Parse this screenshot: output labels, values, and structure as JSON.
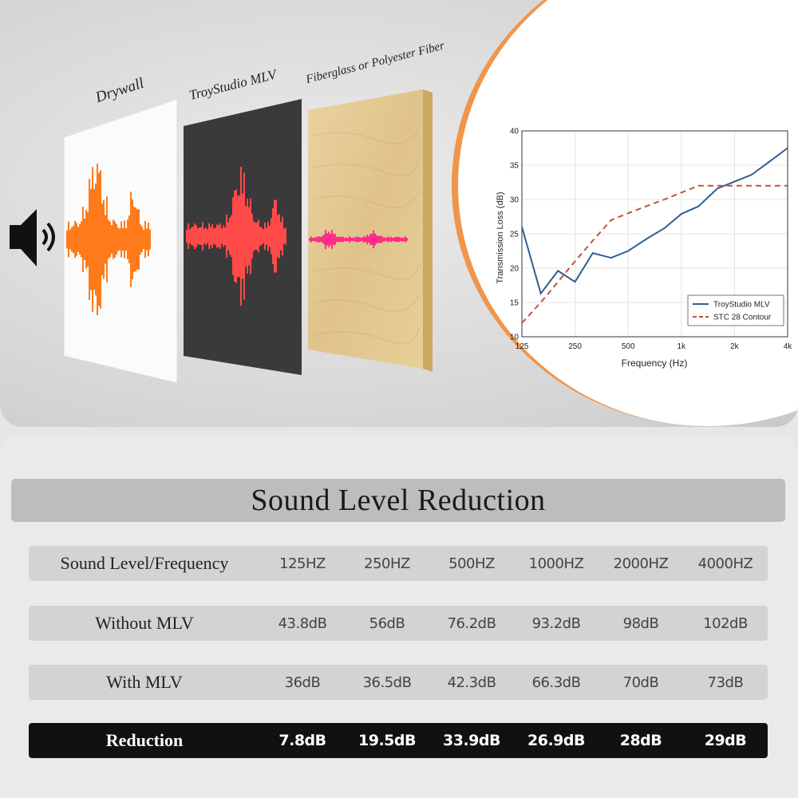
{
  "layers": [
    {
      "name": "Drywall"
    },
    {
      "name": "TroyStudio MLV"
    },
    {
      "name": "Fiberglass or Polyester Fiber"
    }
  ],
  "icons": {
    "speaker": "speaker-icon"
  },
  "colors": {
    "accent": "#f0954a",
    "mlv_line": "#2f5f8f",
    "stc_line": "#c0533a",
    "wave_drywall": "#ff7a1a",
    "wave_mlv": "#ff4a4a",
    "wave_fiber": "#ff2d8a"
  },
  "chart_data": {
    "type": "line",
    "xlabel": "Frequency (Hz)",
    "ylabel": "Transmission Loss (dB)",
    "xscale": "log",
    "xlim": [
      125,
      4000
    ],
    "ylim": [
      10,
      40
    ],
    "xticks": [
      125,
      250,
      500,
      1000,
      2000,
      4000
    ],
    "xticklabels": [
      "125",
      "250",
      "500",
      "1k",
      "2k",
      "4k"
    ],
    "yticks": [
      10,
      15,
      20,
      25,
      30,
      35,
      40
    ],
    "grid": true,
    "legend": "bottom-right",
    "series": [
      {
        "name": "TroyStudio MLV",
        "style": "solid",
        "x": [
          125,
          160,
          200,
          250,
          315,
          400,
          500,
          630,
          800,
          1000,
          1250,
          1600,
          2000,
          2500,
          3150,
          4000
        ],
        "y": [
          26,
          16.3,
          19.6,
          18,
          22.2,
          21.5,
          22.5,
          24.2,
          25.8,
          27.9,
          29,
          31.6,
          32.6,
          33.6,
          35.5,
          37.5
        ]
      },
      {
        "name": "STC 28 Contour",
        "style": "dashed",
        "x": [
          125,
          160,
          200,
          250,
          315,
          400,
          500,
          630,
          800,
          1000,
          1250,
          1600,
          2000,
          2500,
          3150,
          4000
        ],
        "y": [
          12,
          15,
          18,
          21,
          24,
          27,
          28,
          29,
          30,
          31,
          32,
          32,
          32,
          32,
          32,
          32
        ]
      }
    ]
  },
  "table": {
    "title": "Sound Level Reduction",
    "rows": [
      {
        "label": "Sound Level/Frequency",
        "cells": [
          "125HZ",
          "250HZ",
          "500HZ",
          "1000HZ",
          "2000HZ",
          "4000HZ"
        ]
      },
      {
        "label": "Without MLV",
        "cells": [
          "43.8dB",
          "56dB",
          "76.2dB",
          "93.2dB",
          "98dB",
          "102dB"
        ]
      },
      {
        "label": "With MLV",
        "cells": [
          "36dB",
          "36.5dB",
          "42.3dB",
          "66.3dB",
          "70dB",
          "73dB"
        ]
      },
      {
        "label": "Reduction",
        "cells": [
          "7.8dB",
          "19.5dB",
          "33.9dB",
          "26.9dB",
          "28dB",
          "29dB"
        ]
      }
    ]
  }
}
